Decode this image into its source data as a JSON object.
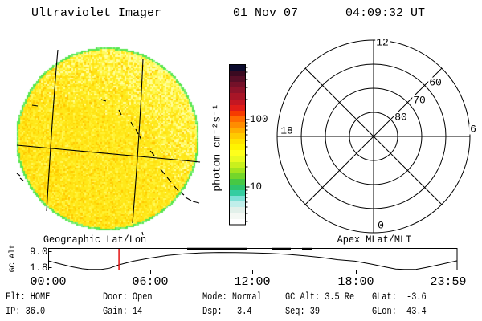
{
  "header": {
    "title": "Ultraviolet Imager",
    "date": "01 Nov 07",
    "time": "04:09:32 UT"
  },
  "disk_panel": {
    "title": "Geographic Lat/Lon",
    "base_color": "#ffe81a",
    "base_color2": "#fff235",
    "gold_color": "#ffdf10",
    "deep_color": "#ffd300",
    "speck_color": "#ffc400",
    "pale_color": "#fff95e",
    "palest_color": "#ffff9e",
    "rim_color": "#55e64d",
    "rim_color2": "#7df07a",
    "grid_color": "#000000"
  },
  "colorbar": {
    "label": "photon cm⁻²s⁻¹",
    "tick_labels": [
      "100",
      "10"
    ],
    "colors_top_to_bottom": [
      "#0b0b2d",
      "#3a0a21",
      "#570e27",
      "#741129",
      "#8e132a",
      "#a81527",
      "#c41722",
      "#e01d18",
      "#f63b00",
      "#ff6c00",
      "#ff8d00",
      "#ffae00",
      "#ffca00",
      "#ffe200",
      "#fff400",
      "#feff1c",
      "#e9fa20",
      "#c9f01d",
      "#a2e41f",
      "#74d62a",
      "#46c844",
      "#2ec46d",
      "#35cda0",
      "#7fe0d6",
      "#c0eeea",
      "#e2f0ea",
      "#f4f8f4",
      "#ffffff"
    ]
  },
  "polar_panel": {
    "title": "Apex MLat/MLT",
    "hour_top": "12",
    "hour_left": "18",
    "hour_right": "6",
    "hour_bottom": "0",
    "ring_80": "80",
    "ring_70": "70",
    "ring_60": "60"
  },
  "stripchart": {
    "type": "line",
    "ylabel": "GC Alt",
    "y_tick_labels": [
      "9.0",
      "1.8"
    ],
    "y_range": [
      1.8,
      9.0
    ],
    "x_tick_labels": [
      "00:00",
      "06:00",
      "12:00",
      "18:00",
      "23:59"
    ],
    "marker_color": "#e31212",
    "marker_hours": 4.155,
    "series": {
      "name": "GC Alt (Re)",
      "t_hours": [
        0,
        0.7,
        1.4,
        2.0,
        2.4,
        3.1,
        3.6,
        4.15,
        5,
        6,
        7,
        8,
        9,
        10,
        11,
        12,
        13,
        14,
        15,
        16,
        17,
        18,
        19,
        19.8,
        20.4,
        20.9,
        21.6,
        22.2,
        23,
        23.98
      ],
      "alt_re": [
        4.9,
        3.8,
        2.8,
        2.1,
        1.85,
        1.85,
        2.3,
        3.5,
        4.8,
        5.9,
        6.8,
        7.4,
        7.7,
        7.85,
        7.8,
        7.7,
        7.5,
        7.2,
        6.7,
        6.1,
        5.3,
        4.8,
        3.7,
        2.7,
        2.0,
        1.85,
        1.9,
        2.6,
        3.6,
        4.9
      ]
    }
  },
  "status": {
    "row1": [
      "Flt: HOME",
      "Door: Open",
      "Mode: Normal",
      "GC Alt: 3.5 Re",
      "GLat:  -3.6"
    ],
    "row2": [
      "IP: 36.0",
      "Gain: 14",
      "Dsp:   3.4",
      "Seq: 39",
      "GLon:  43.4"
    ]
  }
}
